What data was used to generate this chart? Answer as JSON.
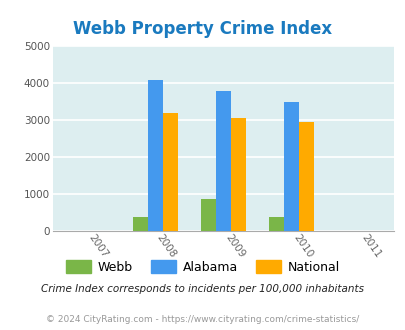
{
  "title": "Webb Property Crime Index",
  "title_color": "#1a7abf",
  "years": [
    2007,
    2008,
    2009,
    2010,
    2011
  ],
  "data_years": [
    2008,
    2009,
    2010
  ],
  "webb": [
    390,
    870,
    380
  ],
  "alabama": [
    4080,
    3775,
    3490
  ],
  "national": [
    3200,
    3050,
    2950
  ],
  "webb_color": "#7ab648",
  "alabama_color": "#4499ee",
  "national_color": "#ffaa00",
  "ylim": [
    0,
    5000
  ],
  "yticks": [
    0,
    1000,
    2000,
    3000,
    4000,
    5000
  ],
  "bg_color": "#ddeef0",
  "grid_color": "#ffffff",
  "legend_labels": [
    "Webb",
    "Alabama",
    "National"
  ],
  "footnote1": "Crime Index corresponds to incidents per 100,000 inhabitants",
  "footnote2": "© 2024 CityRating.com - https://www.cityrating.com/crime-statistics/"
}
